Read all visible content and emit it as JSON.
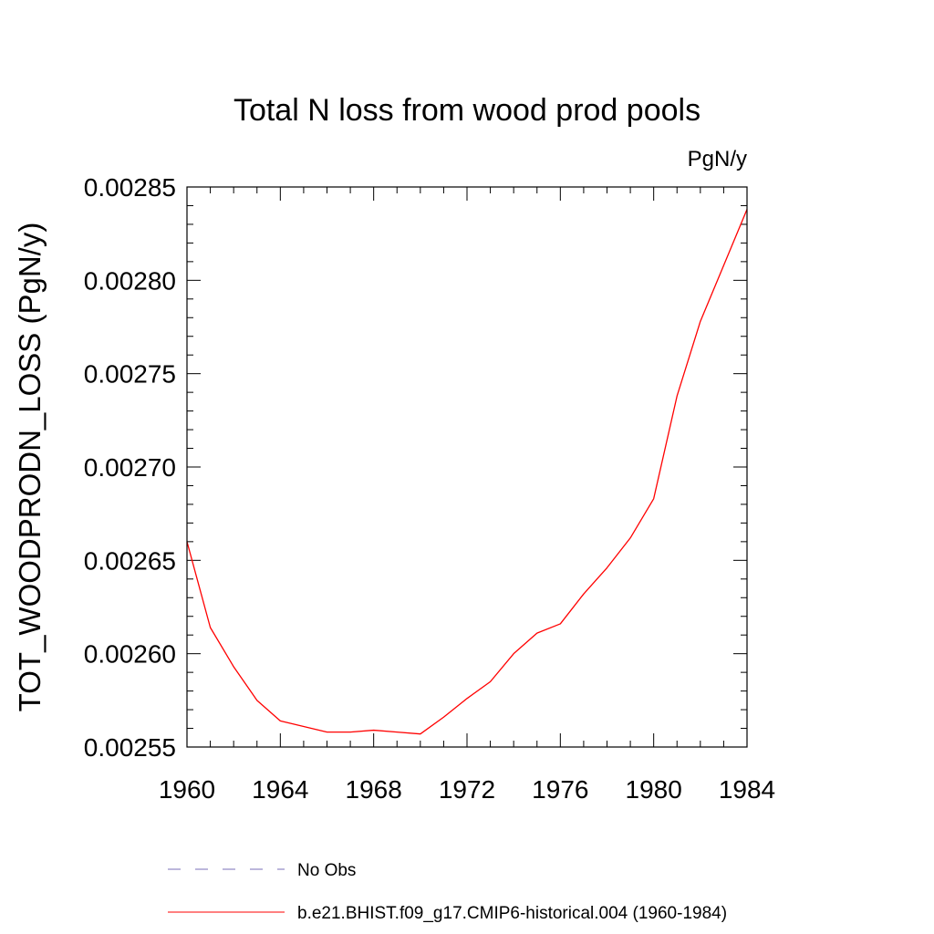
{
  "chart_data": {
    "type": "line",
    "title": "Total N loss from wood prod pools",
    "units_label": "PgN/y",
    "ylabel": "TOT_WOODPRODN_LOSS  (PgN/y)",
    "xlabel": "",
    "xlim": [
      1960,
      1984
    ],
    "ylim": [
      0.00255,
      0.00285
    ],
    "x_ticks": [
      "1960",
      "1964",
      "1968",
      "1972",
      "1976",
      "1980",
      "1984"
    ],
    "y_ticks": [
      "0.00255",
      "0.00260",
      "0.00265",
      "0.00270",
      "0.00275",
      "0.00280",
      "0.00285"
    ],
    "grid": false,
    "legend_placement": "bottom",
    "series": [
      {
        "name": "b.e21.BHIST.f09_g17.CMIP6-historical.004 (1960-1984)",
        "color": "#ff0000",
        "style": "solid",
        "x": [
          1960,
          1961,
          1962,
          1963,
          1964,
          1965,
          1966,
          1967,
          1968,
          1969,
          1970,
          1971,
          1972,
          1973,
          1974,
          1975,
          1976,
          1977,
          1978,
          1979,
          1980,
          1981,
          1982,
          1983,
          1984
        ],
        "y": [
          0.00266,
          0.002614,
          0.002593,
          0.002575,
          0.002564,
          0.002561,
          0.002558,
          0.002558,
          0.002559,
          0.002558,
          0.002557,
          0.002566,
          0.002576,
          0.002585,
          0.0026,
          0.002611,
          0.002616,
          0.002632,
          0.002646,
          0.002662,
          0.002683,
          0.002738,
          0.002778,
          0.002808,
          0.002838
        ]
      }
    ],
    "legend": [
      {
        "name": "No Obs",
        "color": "#7a6fb8",
        "style": "dashed"
      },
      {
        "name": "b.e21.BHIST.f09_g17.CMIP6-historical.004 (1960-1984)",
        "color": "#ff0000",
        "style": "solid"
      }
    ]
  }
}
